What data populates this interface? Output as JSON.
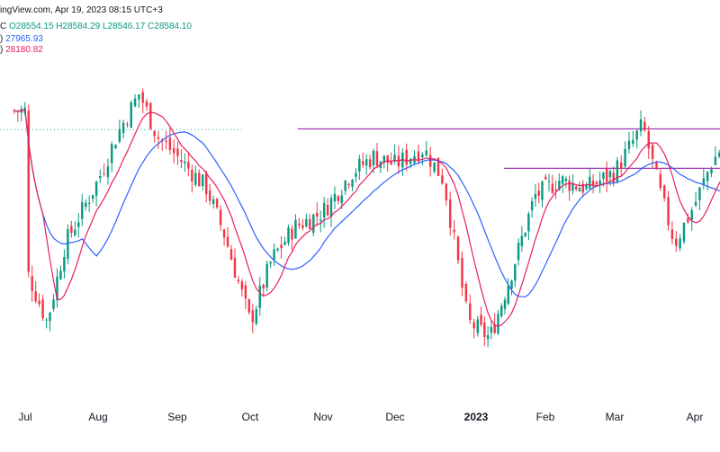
{
  "header": {
    "source": "ingView.com, Apr 19, 2023 08:15 UTC+3",
    "ohlc_prefix": "C",
    "ohlc_values": "O28554.15 H28584.29 L28546.17 C28584.10",
    "ma_fast_prefix": ")",
    "ma_fast_value": "27965.93",
    "ma_slow_prefix": ")",
    "ma_slow_value": "28180.82"
  },
  "colors": {
    "up": "#089981",
    "down": "#f23645",
    "ma_fast": "#2962ff",
    "ma_slow": "#e91e63",
    "resistance": "#9c27b0",
    "dotted": "#26a69a"
  },
  "chart_data": {
    "type": "candlestick",
    "x_tick_labels": [
      "Jul",
      "Aug",
      "Sep",
      "Oct",
      "Nov",
      "Dec",
      "2023",
      "Feb",
      "Mar",
      "Apr"
    ],
    "x_tick_month_index": [
      0,
      1,
      2,
      3,
      4,
      5,
      6,
      7,
      8,
      9
    ],
    "price_path_anchors": [
      [
        0,
        26600
      ],
      [
        0.3,
        25900
      ],
      [
        0.55,
        26900
      ],
      [
        1.0,
        27700
      ],
      [
        1.25,
        28300
      ],
      [
        1.52,
        28800
      ],
      [
        1.75,
        28250
      ],
      [
        2.0,
        28000
      ],
      [
        2.4,
        27600
      ],
      [
        2.65,
        27000
      ],
      [
        3.0,
        25900
      ],
      [
        3.3,
        26700
      ],
      [
        3.6,
        27100
      ],
      [
        4.0,
        27300
      ],
      [
        4.4,
        27800
      ],
      [
        4.7,
        28000
      ],
      [
        5.0,
        27900
      ],
      [
        5.35,
        28100
      ],
      [
        5.6,
        27700
      ],
      [
        5.9,
        25900
      ],
      [
        6.2,
        25700
      ],
      [
        6.5,
        26500
      ],
      [
        6.85,
        27500
      ],
      [
        7.2,
        27700
      ],
      [
        7.6,
        27600
      ],
      [
        8.0,
        27800
      ],
      [
        8.35,
        28400
      ],
      [
        8.55,
        27600
      ],
      [
        8.75,
        26900
      ],
      [
        9.0,
        27400
      ],
      [
        9.2,
        27900
      ],
      [
        9.45,
        28300
      ],
      [
        9.6,
        28580
      ]
    ],
    "resistance_levels": [
      {
        "price": 28350,
        "x_start_month": 3.65,
        "x_end_month": 9.6
      },
      {
        "price": 27850,
        "x_start_month": 6.4,
        "x_end_month": 9.6
      }
    ],
    "dotted_level": {
      "price": 28340,
      "x_end_month": 2.9
    },
    "ma_fast_period": 20,
    "ma_slow_period": 9,
    "grid": false,
    "legend": "top-left"
  }
}
